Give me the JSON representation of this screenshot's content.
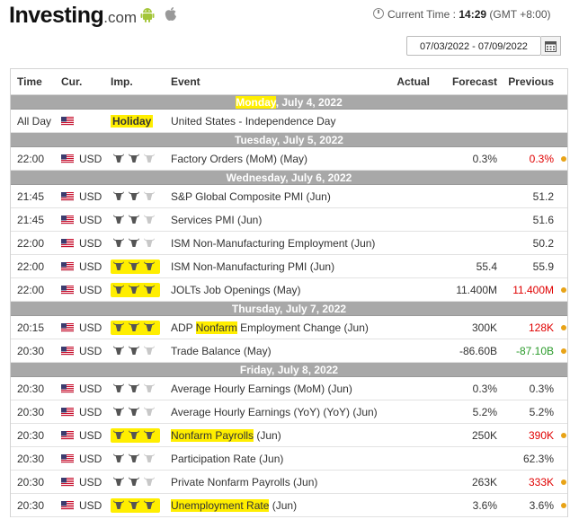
{
  "header": {
    "logo_main": "Investing",
    "logo_suffix": ".com",
    "current_time_label": "Current Time :",
    "current_time_value": "14:29",
    "timezone": "(GMT +8:00)",
    "date_range": "07/03/2022 - 07/09/2022"
  },
  "columns": {
    "time": "Time",
    "cur": "Cur.",
    "imp": "Imp.",
    "event": "Event",
    "actual": "Actual",
    "forecast": "Forecast",
    "previous": "Previous"
  },
  "colors": {
    "highlight": "#ffee00",
    "negative": "#e00000",
    "positive": "#2a9a2a",
    "day_header": "#a8a8a8",
    "dot": "#e8a317"
  },
  "days": [
    {
      "pre": "",
      "hl": "Monday",
      "post": ", July 4, 2022"
    },
    {
      "pre": "Tuesday, July 5, 2022",
      "hl": "",
      "post": ""
    },
    {
      "pre": "Wednesday, July 6, 2022",
      "hl": "",
      "post": ""
    },
    {
      "pre": "Thursday, July 7, 2022",
      "hl": "",
      "post": ""
    },
    {
      "pre": "Friday, July 8, 2022",
      "hl": "",
      "post": ""
    }
  ],
  "rows": [
    {
      "time": "All Day",
      "cur": "",
      "holiday": "Holiday",
      "event_pre": "United States - Independence Day",
      "event_hl": "",
      "event_post": ""
    },
    {
      "time": "22:00",
      "cur": "USD",
      "bulls": 2,
      "bull_hl": false,
      "event_pre": "Factory Orders (MoM) (May)",
      "event_hl": "",
      "event_post": "",
      "actual": "",
      "forecast": "0.3%",
      "previous": "0.3%",
      "prev_color": "red",
      "dot": true
    },
    {
      "time": "21:45",
      "cur": "USD",
      "bulls": 2,
      "bull_hl": false,
      "event_pre": "S&P Global Composite PMI (Jun)",
      "event_hl": "",
      "event_post": "",
      "actual": "",
      "forecast": "",
      "previous": "51.2",
      "prev_color": "",
      "dot": false
    },
    {
      "time": "21:45",
      "cur": "USD",
      "bulls": 2,
      "bull_hl": false,
      "event_pre": "Services PMI (Jun)",
      "event_hl": "",
      "event_post": "",
      "actual": "",
      "forecast": "",
      "previous": "51.6",
      "prev_color": "",
      "dot": false
    },
    {
      "time": "22:00",
      "cur": "USD",
      "bulls": 2,
      "bull_hl": false,
      "event_pre": "ISM Non-Manufacturing Employment (Jun)",
      "event_hl": "",
      "event_post": "",
      "actual": "",
      "forecast": "",
      "previous": "50.2",
      "prev_color": "",
      "dot": false
    },
    {
      "time": "22:00",
      "cur": "USD",
      "bulls": 3,
      "bull_hl": true,
      "event_pre": "ISM Non-Manufacturing PMI (Jun)",
      "event_hl": "",
      "event_post": "",
      "actual": "",
      "forecast": "55.4",
      "previous": "55.9",
      "prev_color": "",
      "dot": false
    },
    {
      "time": "22:00",
      "cur": "USD",
      "bulls": 3,
      "bull_hl": true,
      "event_pre": "JOLTs Job Openings (May)",
      "event_hl": "",
      "event_post": "",
      "actual": "",
      "forecast": "11.400M",
      "previous": "11.400M",
      "prev_color": "red",
      "dot": true
    },
    {
      "time": "20:15",
      "cur": "USD",
      "bulls": 3,
      "bull_hl": true,
      "event_pre": "ADP ",
      "event_hl": "Nonfarm",
      "event_post": " Employment Change (Jun)",
      "actual": "",
      "forecast": "300K",
      "previous": "128K",
      "prev_color": "red",
      "dot": true
    },
    {
      "time": "20:30",
      "cur": "USD",
      "bulls": 2,
      "bull_hl": false,
      "event_pre": "Trade Balance (May)",
      "event_hl": "",
      "event_post": "",
      "actual": "",
      "forecast": "-86.60B",
      "previous": "-87.10B",
      "prev_color": "green",
      "dot": true
    },
    {
      "time": "20:30",
      "cur": "USD",
      "bulls": 2,
      "bull_hl": false,
      "event_pre": "Average Hourly Earnings (MoM) (Jun)",
      "event_hl": "",
      "event_post": "",
      "actual": "",
      "forecast": "0.3%",
      "previous": "0.3%",
      "prev_color": "",
      "dot": false
    },
    {
      "time": "20:30",
      "cur": "USD",
      "bulls": 2,
      "bull_hl": false,
      "event_pre": "Average Hourly Earnings (YoY) (YoY) (Jun)",
      "event_hl": "",
      "event_post": "",
      "actual": "",
      "forecast": "5.2%",
      "previous": "5.2%",
      "prev_color": "",
      "dot": false
    },
    {
      "time": "20:30",
      "cur": "USD",
      "bulls": 3,
      "bull_hl": true,
      "event_pre": "",
      "event_hl": "Nonfarm Payrolls",
      "event_post": " (Jun)",
      "actual": "",
      "forecast": "250K",
      "previous": "390K",
      "prev_color": "red",
      "dot": true
    },
    {
      "time": "20:30",
      "cur": "USD",
      "bulls": 2,
      "bull_hl": false,
      "event_pre": "Participation Rate (Jun)",
      "event_hl": "",
      "event_post": "",
      "actual": "",
      "forecast": "",
      "previous": "62.3%",
      "prev_color": "",
      "dot": false
    },
    {
      "time": "20:30",
      "cur": "USD",
      "bulls": 2,
      "bull_hl": false,
      "event_pre": "Private Nonfarm Payrolls (Jun)",
      "event_hl": "",
      "event_post": "",
      "actual": "",
      "forecast": "263K",
      "previous": "333K",
      "prev_color": "red",
      "dot": true
    },
    {
      "time": "20:30",
      "cur": "USD",
      "bulls": 3,
      "bull_hl": true,
      "event_pre": "",
      "event_hl": "Unemployment Rate",
      "event_post": " (Jun)",
      "actual": "",
      "forecast": "3.6%",
      "previous": "3.6%",
      "prev_color": "",
      "dot": true
    }
  ]
}
